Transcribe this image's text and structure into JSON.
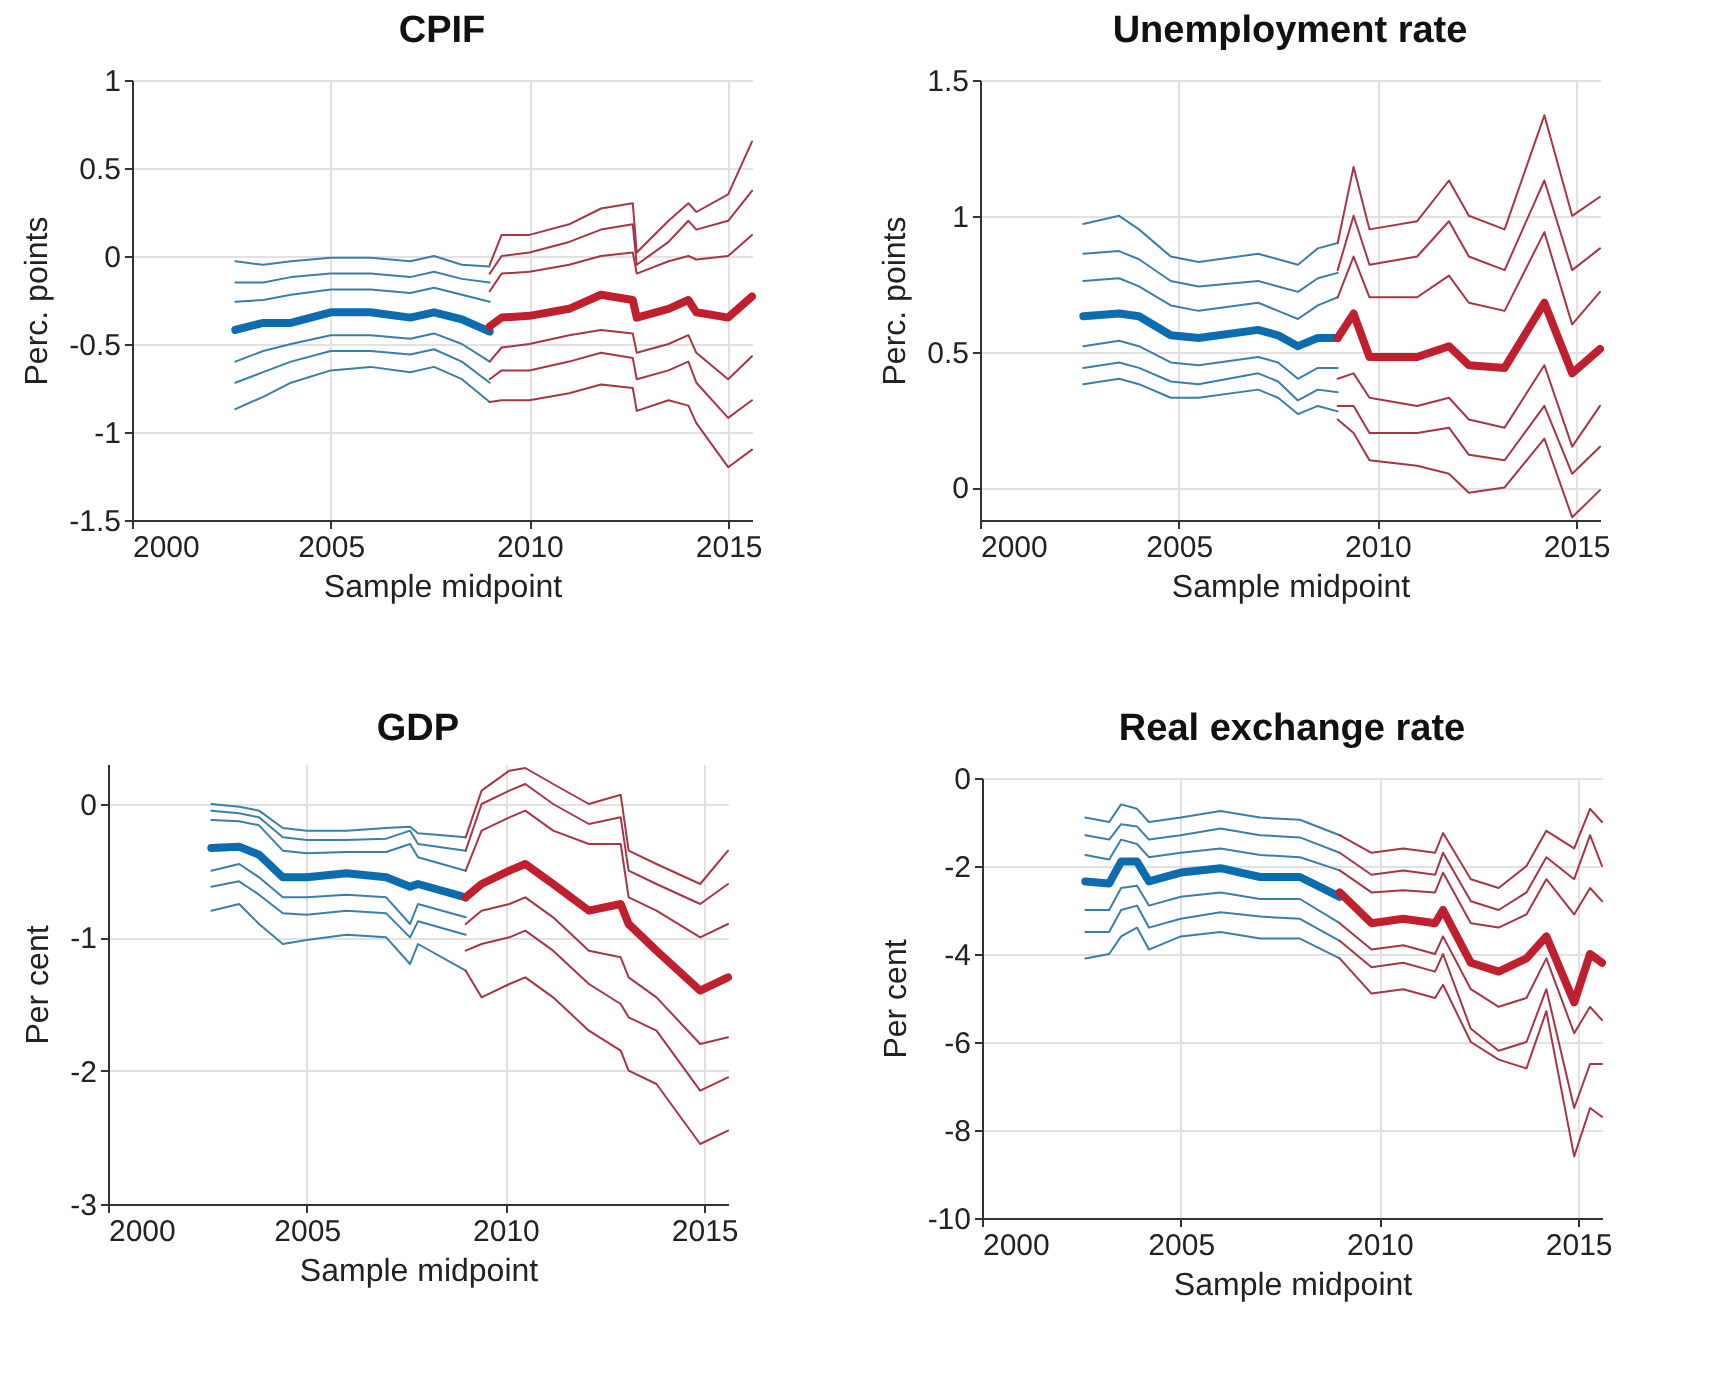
{
  "chart_data": [
    {
      "type": "line",
      "title": "CPIF",
      "xlabel": "Sample midpoint",
      "ylabel": "Perc. points",
      "xlim": [
        2000,
        2015.6
      ],
      "xticks": [
        2000,
        2005,
        2010,
        2015
      ],
      "ylim": [
        -1.5,
        1
      ],
      "yticks": [
        -1.5,
        -1,
        -0.5,
        0,
        0.5,
        1
      ],
      "grid": true,
      "legend": false,
      "series": [
        {
          "color": "#3a7fa8",
          "x": [
            2002.6,
            2003.3,
            2004,
            2005,
            2006,
            2007,
            2007.6,
            2008.3,
            2009
          ],
          "values": [
            -0.03,
            -0.05,
            -0.03,
            -0.01,
            -0.01,
            -0.03,
            0.0,
            -0.05,
            -0.06
          ]
        },
        {
          "color": "#3a7fa8",
          "x": [
            2002.6,
            2003.3,
            2004,
            2005,
            2006,
            2007,
            2007.6,
            2008.3,
            2009
          ],
          "values": [
            -0.15,
            -0.15,
            -0.12,
            -0.1,
            -0.1,
            -0.12,
            -0.09,
            -0.13,
            -0.15
          ]
        },
        {
          "color": "#3a7fa8",
          "x": [
            2002.6,
            2003.3,
            2004,
            2005,
            2006,
            2007,
            2007.6,
            2008.3,
            2009
          ],
          "values": [
            -0.26,
            -0.25,
            -0.22,
            -0.19,
            -0.19,
            -0.21,
            -0.18,
            -0.22,
            -0.26
          ]
        },
        {
          "color": "#0b6cb0",
          "x": [
            2002.6,
            2003.3,
            2004,
            2005,
            2006,
            2007,
            2007.6,
            2008.3,
            2009
          ],
          "values": [
            -0.42,
            -0.38,
            -0.38,
            -0.32,
            -0.32,
            -0.35,
            -0.32,
            -0.36,
            -0.43
          ]
        },
        {
          "color": "#3a7fa8",
          "x": [
            2002.6,
            2003.3,
            2004,
            2005,
            2006,
            2007,
            2007.6,
            2008.3,
            2009
          ],
          "values": [
            -0.6,
            -0.54,
            -0.5,
            -0.45,
            -0.45,
            -0.47,
            -0.44,
            -0.5,
            -0.6
          ]
        },
        {
          "color": "#3a7fa8",
          "x": [
            2002.6,
            2003.3,
            2004,
            2005,
            2006,
            2007,
            2007.6,
            2008.3,
            2009
          ],
          "values": [
            -0.72,
            -0.66,
            -0.6,
            -0.54,
            -0.54,
            -0.56,
            -0.53,
            -0.6,
            -0.72
          ]
        },
        {
          "color": "#3a7fa8",
          "x": [
            2002.6,
            2003.3,
            2004,
            2005,
            2006,
            2007,
            2007.6,
            2008.3,
            2009
          ],
          "values": [
            -0.87,
            -0.8,
            -0.72,
            -0.65,
            -0.63,
            -0.66,
            -0.63,
            -0.7,
            -0.83
          ]
        },
        {
          "color": "#a83545",
          "x": [
            2009,
            2009.3,
            2010,
            2011,
            2011.8,
            2012.6,
            2012.7,
            2013.5,
            2014,
            2014.2,
            2015,
            2015.6
          ],
          "values": [
            -0.05,
            0.12,
            0.12,
            0.18,
            0.27,
            0.3,
            0.02,
            0.2,
            0.3,
            0.25,
            0.35,
            0.65
          ]
        },
        {
          "color": "#a83545",
          "x": [
            2009,
            2009.3,
            2010,
            2011,
            2011.8,
            2012.6,
            2012.7,
            2013.5,
            2014,
            2014.2,
            2015,
            2015.6
          ],
          "values": [
            -0.1,
            0.0,
            0.02,
            0.08,
            0.15,
            0.18,
            -0.05,
            0.08,
            0.2,
            0.15,
            0.2,
            0.37
          ]
        },
        {
          "color": "#a83545",
          "x": [
            2009,
            2009.3,
            2010,
            2011,
            2011.8,
            2012.6,
            2012.7,
            2013.5,
            2014,
            2014.2,
            2015,
            2015.6
          ],
          "values": [
            -0.2,
            -0.1,
            -0.09,
            -0.05,
            0.0,
            0.02,
            -0.1,
            -0.03,
            0.0,
            -0.02,
            0.0,
            0.12
          ]
        },
        {
          "color": "#c0202e",
          "x": [
            2009,
            2009.3,
            2010,
            2011,
            2011.8,
            2012.6,
            2012.7,
            2013.5,
            2014,
            2014.2,
            2015,
            2015.6
          ],
          "values": [
            -0.4,
            -0.35,
            -0.34,
            -0.3,
            -0.22,
            -0.25,
            -0.35,
            -0.3,
            -0.25,
            -0.32,
            -0.35,
            -0.23
          ]
        },
        {
          "color": "#a83545",
          "x": [
            2009,
            2009.3,
            2010,
            2011,
            2011.8,
            2012.6,
            2012.7,
            2013.5,
            2014,
            2014.2,
            2015,
            2015.6
          ],
          "values": [
            -0.6,
            -0.52,
            -0.5,
            -0.45,
            -0.42,
            -0.44,
            -0.55,
            -0.5,
            -0.45,
            -0.55,
            -0.7,
            -0.57
          ]
        },
        {
          "color": "#a83545",
          "x": [
            2009,
            2009.3,
            2010,
            2011,
            2011.8,
            2012.6,
            2012.7,
            2013.5,
            2014,
            2014.2,
            2015,
            2015.6
          ],
          "values": [
            -0.7,
            -0.65,
            -0.65,
            -0.6,
            -0.55,
            -0.58,
            -0.7,
            -0.65,
            -0.6,
            -0.72,
            -0.92,
            -0.82
          ]
        },
        {
          "color": "#a83545",
          "x": [
            2009,
            2009.3,
            2010,
            2011,
            2011.8,
            2012.6,
            2012.7,
            2013.5,
            2014,
            2014.2,
            2015,
            2015.6
          ],
          "values": [
            -0.83,
            -0.82,
            -0.82,
            -0.78,
            -0.73,
            -0.75,
            -0.88,
            -0.82,
            -0.85,
            -0.95,
            -1.2,
            -1.1
          ]
        }
      ]
    },
    {
      "type": "line",
      "title": "Unemployment rate",
      "xlabel": "Sample midpoint",
      "ylabel": "Perc. points",
      "xlim": [
        2000,
        2015.6
      ],
      "xticks": [
        2000,
        2005,
        2010,
        2015
      ],
      "ylim": [
        -0.12,
        1.5
      ],
      "yticks": [
        0,
        0.5,
        1,
        1.5
      ],
      "grid": true,
      "legend": false,
      "series": [
        {
          "color": "#3a7fa8",
          "x": [
            2002.6,
            2003.5,
            2004,
            2004.8,
            2005.5,
            2007,
            2007.5,
            2008,
            2008.5,
            2009
          ],
          "values": [
            0.97,
            1.0,
            0.95,
            0.85,
            0.83,
            0.86,
            0.84,
            0.82,
            0.88,
            0.9
          ]
        },
        {
          "color": "#3a7fa8",
          "x": [
            2002.6,
            2003.5,
            2004,
            2004.8,
            2005.5,
            2007,
            2007.5,
            2008,
            2008.5,
            2009
          ],
          "values": [
            0.86,
            0.87,
            0.84,
            0.76,
            0.74,
            0.76,
            0.74,
            0.72,
            0.77,
            0.79
          ]
        },
        {
          "color": "#3a7fa8",
          "x": [
            2002.6,
            2003.5,
            2004,
            2004.8,
            2005.5,
            2007,
            2007.5,
            2008,
            2008.5,
            2009
          ],
          "values": [
            0.76,
            0.77,
            0.74,
            0.67,
            0.65,
            0.68,
            0.65,
            0.62,
            0.67,
            0.7
          ]
        },
        {
          "color": "#0b6cb0",
          "x": [
            2002.6,
            2003.5,
            2004,
            2004.8,
            2005.5,
            2007,
            2007.5,
            2008,
            2008.5,
            2009
          ],
          "values": [
            0.63,
            0.64,
            0.63,
            0.56,
            0.55,
            0.58,
            0.56,
            0.52,
            0.55,
            0.55
          ]
        },
        {
          "color": "#3a7fa8",
          "x": [
            2002.6,
            2003.5,
            2004,
            2004.8,
            2005.5,
            2007,
            2007.5,
            2008,
            2008.5,
            2009
          ],
          "values": [
            0.52,
            0.54,
            0.52,
            0.46,
            0.45,
            0.48,
            0.46,
            0.4,
            0.44,
            0.44
          ]
        },
        {
          "color": "#3a7fa8",
          "x": [
            2002.6,
            2003.5,
            2004,
            2004.8,
            2005.5,
            2007,
            2007.5,
            2008,
            2008.5,
            2009
          ],
          "values": [
            0.44,
            0.46,
            0.44,
            0.39,
            0.38,
            0.42,
            0.39,
            0.32,
            0.36,
            0.35
          ]
        },
        {
          "color": "#3a7fa8",
          "x": [
            2002.6,
            2003.5,
            2004,
            2004.8,
            2005.5,
            2007,
            2007.5,
            2008,
            2008.5,
            2009
          ],
          "values": [
            0.38,
            0.4,
            0.38,
            0.33,
            0.33,
            0.36,
            0.33,
            0.27,
            0.3,
            0.28
          ]
        },
        {
          "color": "#a83545",
          "x": [
            2009,
            2009.4,
            2009.8,
            2011,
            2011.8,
            2012.3,
            2013.2,
            2014.2,
            2014.9,
            2015.6
          ],
          "values": [
            0.9,
            1.18,
            0.95,
            0.98,
            1.13,
            1.0,
            0.95,
            1.37,
            1.0,
            1.07
          ]
        },
        {
          "color": "#a83545",
          "x": [
            2009,
            2009.4,
            2009.8,
            2011,
            2011.8,
            2012.3,
            2013.2,
            2014.2,
            2014.9,
            2015.6
          ],
          "values": [
            0.8,
            1.0,
            0.82,
            0.85,
            0.98,
            0.85,
            0.8,
            1.13,
            0.8,
            0.88
          ]
        },
        {
          "color": "#a83545",
          "x": [
            2009,
            2009.4,
            2009.8,
            2011,
            2011.8,
            2012.3,
            2013.2,
            2014.2,
            2014.9,
            2015.6
          ],
          "values": [
            0.7,
            0.85,
            0.7,
            0.7,
            0.78,
            0.68,
            0.65,
            0.94,
            0.6,
            0.72
          ]
        },
        {
          "color": "#c0202e",
          "x": [
            2009,
            2009.4,
            2009.8,
            2011,
            2011.8,
            2012.3,
            2013.2,
            2014.2,
            2014.9,
            2015.6
          ],
          "values": [
            0.55,
            0.64,
            0.48,
            0.48,
            0.52,
            0.45,
            0.44,
            0.68,
            0.42,
            0.51
          ]
        },
        {
          "color": "#a83545",
          "x": [
            2009,
            2009.4,
            2009.8,
            2011,
            2011.8,
            2012.3,
            2013.2,
            2014.2,
            2014.9,
            2015.6
          ],
          "values": [
            0.4,
            0.42,
            0.33,
            0.3,
            0.33,
            0.25,
            0.22,
            0.45,
            0.15,
            0.3
          ]
        },
        {
          "color": "#a83545",
          "x": [
            2009,
            2009.4,
            2009.8,
            2011,
            2011.8,
            2012.3,
            2013.2,
            2014.2,
            2014.9,
            2015.6
          ],
          "values": [
            0.3,
            0.3,
            0.2,
            0.2,
            0.22,
            0.12,
            0.1,
            0.3,
            0.05,
            0.15
          ]
        },
        {
          "color": "#a83545",
          "x": [
            2009,
            2009.4,
            2009.8,
            2011,
            2011.8,
            2012.3,
            2013.2,
            2014.2,
            2014.9,
            2015.6
          ],
          "values": [
            0.25,
            0.2,
            0.1,
            0.08,
            0.05,
            -0.02,
            0.0,
            0.18,
            -0.11,
            -0.01
          ]
        }
      ]
    },
    {
      "type": "line",
      "title": "GDP",
      "xlabel": "Sample midpoint",
      "ylabel": "Per cent",
      "xlim": [
        2000,
        2015.6
      ],
      "xticks": [
        2000,
        2005,
        2010,
        2015
      ],
      "ylim": [
        -3,
        0.3
      ],
      "yticks": [
        -3,
        -2,
        -1,
        0
      ],
      "grid": true,
      "legend": false,
      "series": [
        {
          "color": "#3a7fa8",
          "x": [
            2002.6,
            2003.3,
            2003.8,
            2004.4,
            2005,
            2006,
            2007,
            2007.6,
            2007.8,
            2009
          ],
          "values": [
            0.0,
            -0.02,
            -0.05,
            -0.18,
            -0.2,
            -0.2,
            -0.18,
            -0.17,
            -0.22,
            -0.25
          ]
        },
        {
          "color": "#3a7fa8",
          "x": [
            2002.6,
            2003.3,
            2003.8,
            2004.4,
            2005,
            2006,
            2007,
            2007.6,
            2007.8,
            2009
          ],
          "values": [
            -0.05,
            -0.07,
            -0.1,
            -0.25,
            -0.27,
            -0.27,
            -0.26,
            -0.2,
            -0.3,
            -0.35
          ]
        },
        {
          "color": "#3a7fa8",
          "x": [
            2002.6,
            2003.3,
            2003.8,
            2004.4,
            2005,
            2006,
            2007,
            2007.6,
            2007.8,
            2009
          ],
          "values": [
            -0.12,
            -0.13,
            -0.16,
            -0.35,
            -0.37,
            -0.36,
            -0.36,
            -0.3,
            -0.4,
            -0.5
          ]
        },
        {
          "color": "#0b6cb0",
          "x": [
            2002.6,
            2003.3,
            2003.8,
            2004.4,
            2005,
            2006,
            2007,
            2007.6,
            2007.8,
            2009
          ],
          "values": [
            -0.33,
            -0.32,
            -0.38,
            -0.55,
            -0.55,
            -0.52,
            -0.55,
            -0.62,
            -0.6,
            -0.7
          ]
        },
        {
          "color": "#3a7fa8",
          "x": [
            2002.6,
            2003.3,
            2003.8,
            2004.4,
            2005,
            2006,
            2007,
            2007.6,
            2007.8,
            2009
          ],
          "values": [
            -0.5,
            -0.45,
            -0.55,
            -0.7,
            -0.7,
            -0.68,
            -0.7,
            -0.9,
            -0.75,
            -0.85
          ]
        },
        {
          "color": "#3a7fa8",
          "x": [
            2002.6,
            2003.3,
            2003.8,
            2004.4,
            2005,
            2006,
            2007,
            2007.6,
            2007.8,
            2009
          ],
          "values": [
            -0.62,
            -0.58,
            -0.68,
            -0.82,
            -0.83,
            -0.8,
            -0.82,
            -1.0,
            -0.88,
            -0.98
          ]
        },
        {
          "color": "#3a7fa8",
          "x": [
            2002.6,
            2003.3,
            2003.8,
            2004.4,
            2005,
            2006,
            2007,
            2007.6,
            2007.8,
            2009
          ],
          "values": [
            -0.8,
            -0.75,
            -0.9,
            -1.05,
            -1.02,
            -0.98,
            -1.0,
            -1.2,
            -1.05,
            -1.25
          ]
        },
        {
          "color": "#a83545",
          "x": [
            2009,
            2009.4,
            2010.1,
            2010.5,
            2011.2,
            2012.1,
            2012.9,
            2013.1,
            2013.8,
            2014.9,
            2015.6
          ],
          "values": [
            -0.25,
            0.1,
            0.25,
            0.27,
            0.15,
            0.0,
            0.07,
            -0.35,
            -0.45,
            -0.6,
            -0.35
          ]
        },
        {
          "color": "#a83545",
          "x": [
            2009,
            2009.4,
            2010.1,
            2010.5,
            2011.2,
            2012.1,
            2012.9,
            2013.1,
            2013.8,
            2014.9,
            2015.6
          ],
          "values": [
            -0.35,
            0.0,
            0.1,
            0.15,
            0.0,
            -0.15,
            -0.1,
            -0.5,
            -0.6,
            -0.75,
            -0.6
          ]
        },
        {
          "color": "#a83545",
          "x": [
            2009,
            2009.4,
            2010.1,
            2010.5,
            2011.2,
            2012.1,
            2012.9,
            2013.1,
            2013.8,
            2014.9,
            2015.6
          ],
          "values": [
            -0.5,
            -0.2,
            -0.1,
            -0.05,
            -0.2,
            -0.3,
            -0.3,
            -0.7,
            -0.8,
            -1.0,
            -0.9
          ]
        },
        {
          "color": "#c0202e",
          "x": [
            2009,
            2009.4,
            2010.1,
            2010.5,
            2011.2,
            2012.1,
            2012.9,
            2013.1,
            2013.8,
            2014.9,
            2015.6
          ],
          "values": [
            -0.7,
            -0.6,
            -0.5,
            -0.45,
            -0.6,
            -0.8,
            -0.75,
            -0.9,
            -1.1,
            -1.4,
            -1.3
          ]
        },
        {
          "color": "#a83545",
          "x": [
            2009,
            2009.4,
            2010.1,
            2010.5,
            2011.2,
            2012.1,
            2012.9,
            2013.1,
            2013.8,
            2014.9,
            2015.6
          ],
          "values": [
            -0.9,
            -0.8,
            -0.75,
            -0.7,
            -0.85,
            -1.1,
            -1.15,
            -1.3,
            -1.45,
            -1.8,
            -1.75
          ]
        },
        {
          "color": "#a83545",
          "x": [
            2009,
            2009.4,
            2010.1,
            2010.5,
            2011.2,
            2012.1,
            2012.9,
            2013.1,
            2013.8,
            2014.9,
            2015.6
          ],
          "values": [
            -1.1,
            -1.05,
            -1.0,
            -0.95,
            -1.1,
            -1.35,
            -1.5,
            -1.6,
            -1.7,
            -2.15,
            -2.05
          ]
        },
        {
          "color": "#a83545",
          "x": [
            2009,
            2009.4,
            2010.1,
            2010.5,
            2011.2,
            2012.1,
            2012.9,
            2013.1,
            2013.8,
            2014.9,
            2015.6
          ],
          "values": [
            -1.25,
            -1.45,
            -1.35,
            -1.3,
            -1.45,
            -1.7,
            -1.85,
            -2.0,
            -2.1,
            -2.55,
            -2.45
          ]
        }
      ]
    },
    {
      "type": "line",
      "title": "Real exchange rate",
      "xlabel": "Sample midpoint",
      "ylabel": "Per cent",
      "xlim": [
        2000,
        2015.6
      ],
      "xticks": [
        2000,
        2005,
        2010,
        2015
      ],
      "ylim": [
        -10,
        0
      ],
      "yticks": [
        -10,
        -8,
        -6,
        -4,
        -2,
        0
      ],
      "grid": true,
      "legend": false,
      "series": [
        {
          "color": "#3a7fa8",
          "x": [
            2002.6,
            2003.2,
            2003.5,
            2003.9,
            2004.2,
            2005,
            2006,
            2007,
            2008,
            2009
          ],
          "values": [
            -0.9,
            -1.0,
            -0.6,
            -0.7,
            -1.0,
            -0.9,
            -0.75,
            -0.9,
            -0.95,
            -1.3
          ]
        },
        {
          "color": "#3a7fa8",
          "x": [
            2002.6,
            2003.2,
            2003.5,
            2003.9,
            2004.2,
            2005,
            2006,
            2007,
            2008,
            2009
          ],
          "values": [
            -1.3,
            -1.4,
            -1.05,
            -1.1,
            -1.4,
            -1.3,
            -1.15,
            -1.3,
            -1.35,
            -1.7
          ]
        },
        {
          "color": "#3a7fa8",
          "x": [
            2002.6,
            2003.2,
            2003.5,
            2003.9,
            2004.2,
            2005,
            2006,
            2007,
            2008,
            2009
          ],
          "values": [
            -1.75,
            -1.85,
            -1.4,
            -1.5,
            -1.8,
            -1.7,
            -1.6,
            -1.75,
            -1.8,
            -2.1
          ]
        },
        {
          "color": "#0b6cb0",
          "x": [
            2002.6,
            2003.2,
            2003.5,
            2003.9,
            2004.2,
            2005,
            2006,
            2007,
            2008,
            2009
          ],
          "values": [
            -2.35,
            -2.4,
            -1.9,
            -1.9,
            -2.35,
            -2.15,
            -2.05,
            -2.25,
            -2.25,
            -2.7
          ]
        },
        {
          "color": "#3a7fa8",
          "x": [
            2002.6,
            2003.2,
            2003.5,
            2003.9,
            2004.2,
            2005,
            2006,
            2007,
            2008,
            2009
          ],
          "values": [
            -3.0,
            -3.0,
            -2.5,
            -2.45,
            -2.9,
            -2.7,
            -2.6,
            -2.75,
            -2.75,
            -3.3
          ]
        },
        {
          "color": "#3a7fa8",
          "x": [
            2002.6,
            2003.2,
            2003.5,
            2003.9,
            2004.2,
            2005,
            2006,
            2007,
            2008,
            2009
          ],
          "values": [
            -3.5,
            -3.5,
            -3.0,
            -2.9,
            -3.4,
            -3.2,
            -3.05,
            -3.15,
            -3.2,
            -3.7
          ]
        },
        {
          "color": "#3a7fa8",
          "x": [
            2002.6,
            2003.2,
            2003.5,
            2003.9,
            2004.2,
            2005,
            2006,
            2007,
            2008,
            2009
          ],
          "values": [
            -4.1,
            -4.0,
            -3.6,
            -3.4,
            -3.9,
            -3.6,
            -3.5,
            -3.65,
            -3.65,
            -4.1
          ]
        },
        {
          "color": "#a83545",
          "x": [
            2009,
            2009.8,
            2010.6,
            2011.4,
            2011.6,
            2012.3,
            2013,
            2013.7,
            2014.2,
            2014.9,
            2015.3,
            2015.6
          ],
          "values": [
            -1.3,
            -1.7,
            -1.6,
            -1.7,
            -1.25,
            -2.3,
            -2.5,
            -2.0,
            -1.2,
            -1.6,
            -0.7,
            -1.0
          ]
        },
        {
          "color": "#a83545",
          "x": [
            2009,
            2009.8,
            2010.6,
            2011.4,
            2011.6,
            2012.3,
            2013,
            2013.7,
            2014.2,
            2014.9,
            2015.3,
            2015.6
          ],
          "values": [
            -1.7,
            -2.2,
            -2.1,
            -2.2,
            -1.7,
            -2.8,
            -3.0,
            -2.6,
            -1.8,
            -2.3,
            -1.3,
            -2.0
          ]
        },
        {
          "color": "#a83545",
          "x": [
            2009,
            2009.8,
            2010.6,
            2011.4,
            2011.6,
            2012.3,
            2013,
            2013.7,
            2014.2,
            2014.9,
            2015.3,
            2015.6
          ],
          "values": [
            -2.1,
            -2.6,
            -2.55,
            -2.6,
            -2.15,
            -3.3,
            -3.4,
            -3.1,
            -2.3,
            -3.1,
            -2.5,
            -2.8
          ]
        },
        {
          "color": "#c0202e",
          "x": [
            2009,
            2009.8,
            2010.6,
            2011.4,
            2011.6,
            2012.3,
            2013,
            2013.7,
            2014.2,
            2014.9,
            2015.3,
            2015.6
          ],
          "values": [
            -2.6,
            -3.3,
            -3.2,
            -3.3,
            -3.0,
            -4.2,
            -4.4,
            -4.1,
            -3.6,
            -5.1,
            -4.0,
            -4.2
          ]
        },
        {
          "color": "#a83545",
          "x": [
            2009,
            2009.8,
            2010.6,
            2011.4,
            2011.6,
            2012.3,
            2013,
            2013.7,
            2014.2,
            2014.9,
            2015.3,
            2015.6
          ],
          "values": [
            -3.3,
            -3.9,
            -3.8,
            -4.0,
            -3.6,
            -4.8,
            -5.2,
            -5.0,
            -4.1,
            -5.8,
            -5.2,
            -5.5
          ]
        },
        {
          "color": "#a83545",
          "x": [
            2009,
            2009.8,
            2010.6,
            2011.4,
            2011.6,
            2012.3,
            2013,
            2013.7,
            2014.2,
            2014.9,
            2015.3,
            2015.6
          ],
          "values": [
            -3.7,
            -4.3,
            -4.2,
            -4.4,
            -4.0,
            -5.7,
            -6.2,
            -6.0,
            -4.8,
            -7.5,
            -6.5,
            -6.5
          ]
        },
        {
          "color": "#a83545",
          "x": [
            2009,
            2009.8,
            2010.6,
            2011.4,
            2011.6,
            2012.3,
            2013,
            2013.7,
            2014.2,
            2014.9,
            2015.3,
            2015.6
          ],
          "values": [
            -4.1,
            -4.9,
            -4.8,
            -5.0,
            -4.7,
            -6.0,
            -6.4,
            -6.6,
            -5.3,
            -8.6,
            -7.5,
            -7.7
          ]
        }
      ]
    }
  ]
}
